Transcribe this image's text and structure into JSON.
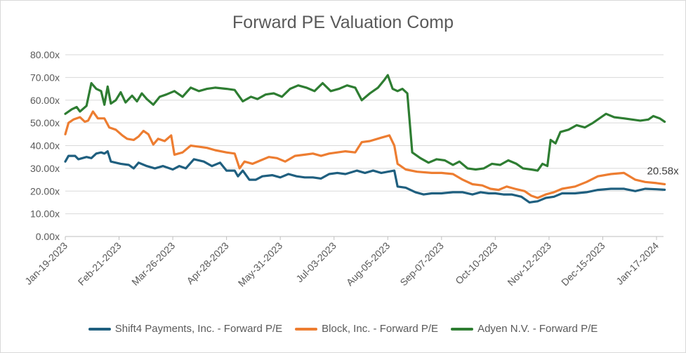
{
  "chart_data": {
    "type": "line",
    "title": "Forward PE Valuation Comp",
    "xlabel": "",
    "ylabel": "",
    "ylim": [
      0,
      80
    ],
    "yticks": [
      0,
      10,
      20,
      30,
      40,
      50,
      60,
      70,
      80
    ],
    "ytick_labels": [
      "0.00x",
      "10.00x",
      "20.00x",
      "30.00x",
      "40.00x",
      "50.00x",
      "60.00x",
      "70.00x",
      "80.00x"
    ],
    "xlim": [
      "2023-01-19",
      "2024-01-22"
    ],
    "xticks": [
      "2023-01-19",
      "2023-02-21",
      "2023-03-26",
      "2023-04-28",
      "2023-05-31",
      "2023-07-03",
      "2023-08-05",
      "2023-09-07",
      "2023-10-10",
      "2023-11-12",
      "2023-12-15",
      "2024-01-17"
    ],
    "xtick_labels": [
      "Jan-19-2023",
      "Feb-21-2023",
      "Mar-26-2023",
      "Apr-28-2023",
      "May-31-2023",
      "Jul-03-2023",
      "Aug-05-2023",
      "Sep-07-2023",
      "Oct-10-2023",
      "Nov-12-2023",
      "Dec-15-2023",
      "Jan-17-2024"
    ],
    "grid": "horizontal",
    "legend_position": "bottom",
    "annotation": "20.58x",
    "series": [
      {
        "name": "Shift4 Payments, Inc. - Forward P/E",
        "color": "#1f5f7f",
        "points": [
          [
            "2023-01-19",
            33
          ],
          [
            "2023-01-21",
            35.5
          ],
          [
            "2023-01-25",
            35.5
          ],
          [
            "2023-01-27",
            34
          ],
          [
            "2023-02-01",
            35
          ],
          [
            "2023-02-04",
            34.5
          ],
          [
            "2023-02-07",
            36.5
          ],
          [
            "2023-02-10",
            37
          ],
          [
            "2023-02-12",
            36.5
          ],
          [
            "2023-02-14",
            37.5
          ],
          [
            "2023-02-16",
            33
          ],
          [
            "2023-02-22",
            32
          ],
          [
            "2023-02-27",
            31.5
          ],
          [
            "2023-03-02",
            30
          ],
          [
            "2023-03-05",
            32.5
          ],
          [
            "2023-03-10",
            31
          ],
          [
            "2023-03-15",
            30
          ],
          [
            "2023-03-20",
            31
          ],
          [
            "2023-03-26",
            29.5
          ],
          [
            "2023-03-30",
            31
          ],
          [
            "2023-04-03",
            30
          ],
          [
            "2023-04-08",
            34
          ],
          [
            "2023-04-14",
            33
          ],
          [
            "2023-04-19",
            31
          ],
          [
            "2023-04-24",
            32.5
          ],
          [
            "2023-04-28",
            29
          ],
          [
            "2023-05-03",
            29
          ],
          [
            "2023-05-05",
            26.5
          ],
          [
            "2023-05-08",
            29
          ],
          [
            "2023-05-12",
            25
          ],
          [
            "2023-05-16",
            25
          ],
          [
            "2023-05-20",
            26.5
          ],
          [
            "2023-05-26",
            27
          ],
          [
            "2023-05-31",
            26
          ],
          [
            "2023-06-05",
            27.5
          ],
          [
            "2023-06-10",
            26.5
          ],
          [
            "2023-06-15",
            26
          ],
          [
            "2023-06-20",
            26
          ],
          [
            "2023-06-25",
            25.5
          ],
          [
            "2023-06-30",
            27.5
          ],
          [
            "2023-07-05",
            28
          ],
          [
            "2023-07-10",
            27.5
          ],
          [
            "2023-07-17",
            29
          ],
          [
            "2023-07-22",
            28
          ],
          [
            "2023-07-27",
            29
          ],
          [
            "2023-08-01",
            28
          ],
          [
            "2023-08-05",
            28.5
          ],
          [
            "2023-08-09",
            29
          ],
          [
            "2023-08-11",
            22
          ],
          [
            "2023-08-16",
            21.5
          ],
          [
            "2023-08-22",
            19.5
          ],
          [
            "2023-08-27",
            18.5
          ],
          [
            "2023-09-01",
            19
          ],
          [
            "2023-09-07",
            19
          ],
          [
            "2023-09-14",
            19.5
          ],
          [
            "2023-09-20",
            19.5
          ],
          [
            "2023-09-26",
            18.5
          ],
          [
            "2023-10-01",
            19.5
          ],
          [
            "2023-10-06",
            19
          ],
          [
            "2023-10-10",
            19
          ],
          [
            "2023-10-15",
            18.5
          ],
          [
            "2023-10-20",
            18.5
          ],
          [
            "2023-10-26",
            17.5
          ],
          [
            "2023-10-31",
            15
          ],
          [
            "2023-11-05",
            15.5
          ],
          [
            "2023-11-10",
            17
          ],
          [
            "2023-11-15",
            17.5
          ],
          [
            "2023-11-20",
            19
          ],
          [
            "2023-11-28",
            19
          ],
          [
            "2023-12-05",
            19.5
          ],
          [
            "2023-12-12",
            20.5
          ],
          [
            "2023-12-20",
            21
          ],
          [
            "2023-12-28",
            21
          ],
          [
            "2024-01-04",
            20
          ],
          [
            "2024-01-10",
            21
          ],
          [
            "2024-01-17",
            20.8
          ],
          [
            "2024-01-22",
            20.58
          ]
        ]
      },
      {
        "name": "Block, Inc. - Forward P/E",
        "color": "#ed7d31",
        "points": [
          [
            "2023-01-19",
            45
          ],
          [
            "2023-01-21",
            50
          ],
          [
            "2023-01-24",
            51.5
          ],
          [
            "2023-01-28",
            52.5
          ],
          [
            "2023-01-31",
            50.5
          ],
          [
            "2023-02-02",
            51
          ],
          [
            "2023-02-05",
            55
          ],
          [
            "2023-02-08",
            52
          ],
          [
            "2023-02-12",
            52
          ],
          [
            "2023-02-15",
            48
          ],
          [
            "2023-02-19",
            47
          ],
          [
            "2023-02-23",
            44.5
          ],
          [
            "2023-02-26",
            43
          ],
          [
            "2023-03-02",
            42.5
          ],
          [
            "2023-03-05",
            44
          ],
          [
            "2023-03-08",
            46.5
          ],
          [
            "2023-03-11",
            45
          ],
          [
            "2023-03-14",
            40.5
          ],
          [
            "2023-03-17",
            43
          ],
          [
            "2023-03-21",
            42
          ],
          [
            "2023-03-25",
            44.5
          ],
          [
            "2023-03-27",
            36
          ],
          [
            "2023-04-01",
            37
          ],
          [
            "2023-04-06",
            40
          ],
          [
            "2023-04-11",
            39.5
          ],
          [
            "2023-04-16",
            39
          ],
          [
            "2023-04-21",
            38
          ],
          [
            "2023-04-28",
            37
          ],
          [
            "2023-05-03",
            36.5
          ],
          [
            "2023-05-06",
            30
          ],
          [
            "2023-05-09",
            33
          ],
          [
            "2023-05-14",
            32
          ],
          [
            "2023-05-19",
            33.5
          ],
          [
            "2023-05-24",
            35
          ],
          [
            "2023-05-29",
            34.5
          ],
          [
            "2023-06-03",
            33
          ],
          [
            "2023-06-09",
            35.5
          ],
          [
            "2023-06-15",
            36
          ],
          [
            "2023-06-20",
            36.5
          ],
          [
            "2023-06-25",
            35.5
          ],
          [
            "2023-06-30",
            36.5
          ],
          [
            "2023-07-05",
            37
          ],
          [
            "2023-07-10",
            37.5
          ],
          [
            "2023-07-16",
            37
          ],
          [
            "2023-07-20",
            41.5
          ],
          [
            "2023-07-25",
            42
          ],
          [
            "2023-08-01",
            43.5
          ],
          [
            "2023-08-06",
            44.5
          ],
          [
            "2023-08-09",
            40
          ],
          [
            "2023-08-11",
            32
          ],
          [
            "2023-08-16",
            29.5
          ],
          [
            "2023-08-23",
            28.5
          ],
          [
            "2023-09-01",
            28
          ],
          [
            "2023-09-07",
            28
          ],
          [
            "2023-09-14",
            27.5
          ],
          [
            "2023-09-20",
            25
          ],
          [
            "2023-09-26",
            23
          ],
          [
            "2023-10-02",
            22.5
          ],
          [
            "2023-10-07",
            21
          ],
          [
            "2023-10-12",
            20.5
          ],
          [
            "2023-10-17",
            22
          ],
          [
            "2023-10-22",
            21
          ],
          [
            "2023-10-28",
            20
          ],
          [
            "2023-11-01",
            18
          ],
          [
            "2023-11-05",
            17
          ],
          [
            "2023-11-10",
            18.5
          ],
          [
            "2023-11-15",
            19.5
          ],
          [
            "2023-11-20",
            21
          ],
          [
            "2023-11-28",
            22
          ],
          [
            "2023-12-05",
            24
          ],
          [
            "2023-12-12",
            26.5
          ],
          [
            "2023-12-20",
            27.5
          ],
          [
            "2023-12-28",
            28
          ],
          [
            "2024-01-04",
            25
          ],
          [
            "2024-01-10",
            24
          ],
          [
            "2024-01-17",
            23.5
          ],
          [
            "2024-01-22",
            23
          ]
        ]
      },
      {
        "name": "Adyen N.V. - Forward P/E",
        "color": "#2e7d32",
        "points": [
          [
            "2023-01-19",
            54
          ],
          [
            "2023-01-23",
            56
          ],
          [
            "2023-01-26",
            57
          ],
          [
            "2023-01-28",
            55
          ],
          [
            "2023-02-01",
            57.5
          ],
          [
            "2023-02-04",
            67.5
          ],
          [
            "2023-02-07",
            65
          ],
          [
            "2023-02-10",
            64
          ],
          [
            "2023-02-12",
            58
          ],
          [
            "2023-02-14",
            66
          ],
          [
            "2023-02-16",
            58.5
          ],
          [
            "2023-02-19",
            60
          ],
          [
            "2023-02-22",
            63.5
          ],
          [
            "2023-02-25",
            59
          ],
          [
            "2023-03-01",
            62
          ],
          [
            "2023-03-04",
            59.5
          ],
          [
            "2023-03-07",
            63
          ],
          [
            "2023-03-10",
            60.5
          ],
          [
            "2023-03-14",
            58
          ],
          [
            "2023-03-18",
            61.5
          ],
          [
            "2023-03-22",
            62.5
          ],
          [
            "2023-03-27",
            64
          ],
          [
            "2023-04-01",
            61.5
          ],
          [
            "2023-04-06",
            65.5
          ],
          [
            "2023-04-11",
            64
          ],
          [
            "2023-04-16",
            65
          ],
          [
            "2023-04-21",
            65.5
          ],
          [
            "2023-04-28",
            65
          ],
          [
            "2023-05-03",
            64.5
          ],
          [
            "2023-05-08",
            59.5
          ],
          [
            "2023-05-13",
            61.5
          ],
          [
            "2023-05-17",
            60.5
          ],
          [
            "2023-05-22",
            62.5
          ],
          [
            "2023-05-27",
            63
          ],
          [
            "2023-06-01",
            61.5
          ],
          [
            "2023-06-06",
            65
          ],
          [
            "2023-06-11",
            66.5
          ],
          [
            "2023-06-16",
            65.5
          ],
          [
            "2023-06-21",
            64
          ],
          [
            "2023-06-26",
            67.5
          ],
          [
            "2023-07-01",
            64
          ],
          [
            "2023-07-06",
            65
          ],
          [
            "2023-07-11",
            66.5
          ],
          [
            "2023-07-16",
            65.5
          ],
          [
            "2023-07-20",
            60
          ],
          [
            "2023-07-25",
            63
          ],
          [
            "2023-07-30",
            65.5
          ],
          [
            "2023-08-03",
            69
          ],
          [
            "2023-08-05",
            71
          ],
          [
            "2023-08-08",
            65
          ],
          [
            "2023-08-11",
            64
          ],
          [
            "2023-08-14",
            65
          ],
          [
            "2023-08-17",
            63
          ],
          [
            "2023-08-20",
            37
          ],
          [
            "2023-08-25",
            34.5
          ],
          [
            "2023-08-30",
            32.5
          ],
          [
            "2023-09-04",
            34
          ],
          [
            "2023-09-09",
            33.5
          ],
          [
            "2023-09-14",
            31.5
          ],
          [
            "2023-09-18",
            33
          ],
          [
            "2023-09-23",
            30
          ],
          [
            "2023-09-28",
            29.5
          ],
          [
            "2023-10-03",
            30
          ],
          [
            "2023-10-08",
            32
          ],
          [
            "2023-10-13",
            31.5
          ],
          [
            "2023-10-18",
            33.5
          ],
          [
            "2023-10-23",
            32
          ],
          [
            "2023-10-27",
            30
          ],
          [
            "2023-11-01",
            29.5
          ],
          [
            "2023-11-05",
            29
          ],
          [
            "2023-11-08",
            32
          ],
          [
            "2023-11-11",
            31
          ],
          [
            "2023-11-13",
            42.5
          ],
          [
            "2023-11-16",
            41
          ],
          [
            "2023-11-19",
            46
          ],
          [
            "2023-11-24",
            47
          ],
          [
            "2023-11-29",
            49
          ],
          [
            "2023-12-04",
            48
          ],
          [
            "2023-12-09",
            50
          ],
          [
            "2023-12-14",
            52.5
          ],
          [
            "2023-12-17",
            54
          ],
          [
            "2023-12-22",
            52.5
          ],
          [
            "2023-12-28",
            52
          ],
          [
            "2024-01-02",
            51.5
          ],
          [
            "2024-01-07",
            51
          ],
          [
            "2024-01-12",
            51.5
          ],
          [
            "2024-01-15",
            53
          ],
          [
            "2024-01-19",
            52
          ],
          [
            "2024-01-22",
            50.5
          ]
        ]
      }
    ]
  }
}
